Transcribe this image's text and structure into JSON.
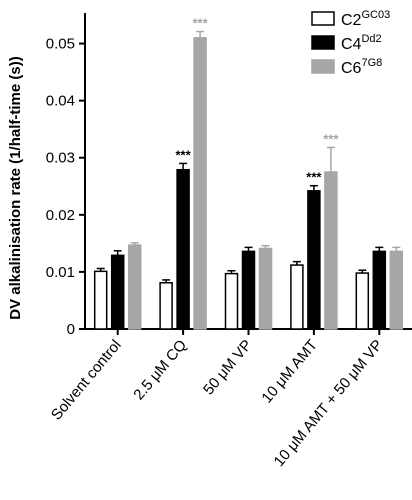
{
  "chart_data": {
    "type": "bar",
    "ylabel": "DV alkalinisation rate (1/half-time (s))",
    "ylim": [
      0,
      0.055
    ],
    "yticks": [
      "0",
      "0.01",
      "0.02",
      "0.03",
      "0.04",
      "0.05"
    ],
    "ytick_values": [
      0,
      0.01,
      0.02,
      0.03,
      0.04,
      0.05
    ],
    "grid": false,
    "legend_position": "top-right",
    "categories": [
      "Solvent control",
      "2.5 μM CQ",
      "50 μM VP",
      "10 μM AMT",
      "10 μM AMT + 50 μM VP"
    ],
    "series": [
      {
        "name": "C2",
        "name_sup": "GC03",
        "fill": "#ffffff",
        "stroke": "#000000",
        "sig_color": "#000000",
        "values": [
          0.0101,
          0.0081,
          0.0097,
          0.0112,
          0.0098
        ],
        "errors": [
          0.0005,
          0.0005,
          0.0005,
          0.0006,
          0.0005
        ],
        "annotations": [
          "",
          "",
          "",
          "",
          ""
        ]
      },
      {
        "name": "C4",
        "name_sup": "Dd2",
        "fill": "#000000",
        "stroke": "#000000",
        "sig_color": "#000000",
        "values": [
          0.0129,
          0.0279,
          0.0136,
          0.0242,
          0.0136
        ],
        "errors": [
          0.0008,
          0.0011,
          0.0007,
          0.0009,
          0.0007
        ],
        "annotations": [
          "",
          "***",
          "",
          "***",
          ""
        ]
      },
      {
        "name": "C6",
        "name_sup": "7G8",
        "fill": "#a6a6a6",
        "stroke": "#a6a6a6",
        "sig_color": "#a6a6a6",
        "values": [
          0.0147,
          0.051,
          0.0141,
          0.0275,
          0.0136
        ],
        "errors": [
          0.0004,
          0.0011,
          0.0005,
          0.0043,
          0.0007
        ],
        "annotations": [
          "",
          "***",
          "",
          "***",
          ""
        ]
      }
    ]
  }
}
